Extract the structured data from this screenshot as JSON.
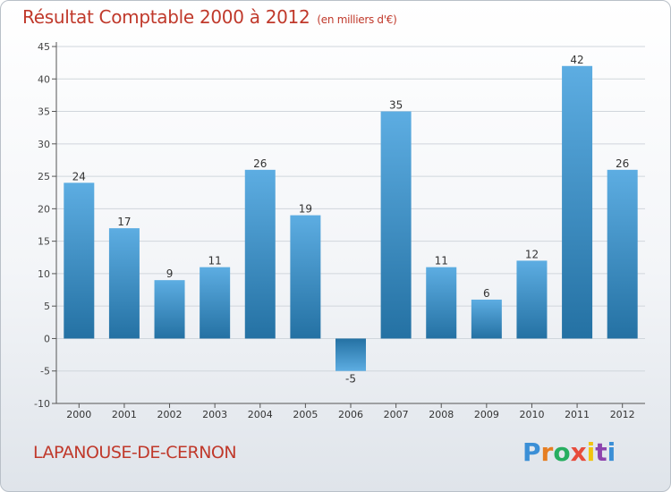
{
  "header": {
    "title": "Résultat Comptable 2000 à 2012",
    "subtitle": "(en milliers d'€)"
  },
  "footer": {
    "commune": "LAPANOUSE-DE-CERNON",
    "logo_text": "Proxiti",
    "logo_colors": [
      "#3b8fd6",
      "#e67e22",
      "#27ae60",
      "#e74c3c",
      "#f1c40f",
      "#8e44ad",
      "#3b8fd6"
    ]
  },
  "colors": {
    "title": "#c0392b",
    "bar_top": "#5dade2",
    "bar_bottom": "#2471a3",
    "grid": "#d0d6dc"
  },
  "chart_data": {
    "type": "bar",
    "title": "Résultat Comptable 2000 à 2012",
    "subtitle": "(en milliers d'€)",
    "categories": [
      "2000",
      "2001",
      "2002",
      "2003",
      "2004",
      "2005",
      "2006",
      "2007",
      "2008",
      "2009",
      "2010",
      "2011",
      "2012"
    ],
    "values": [
      24,
      17,
      9,
      11,
      26,
      19,
      -5,
      35,
      11,
      6,
      12,
      42,
      26
    ],
    "ylim": [
      -10,
      45
    ],
    "yticks": [
      -10,
      -5,
      0,
      5,
      10,
      15,
      20,
      25,
      30,
      35,
      40,
      45
    ],
    "grid": true,
    "legend": "none"
  }
}
